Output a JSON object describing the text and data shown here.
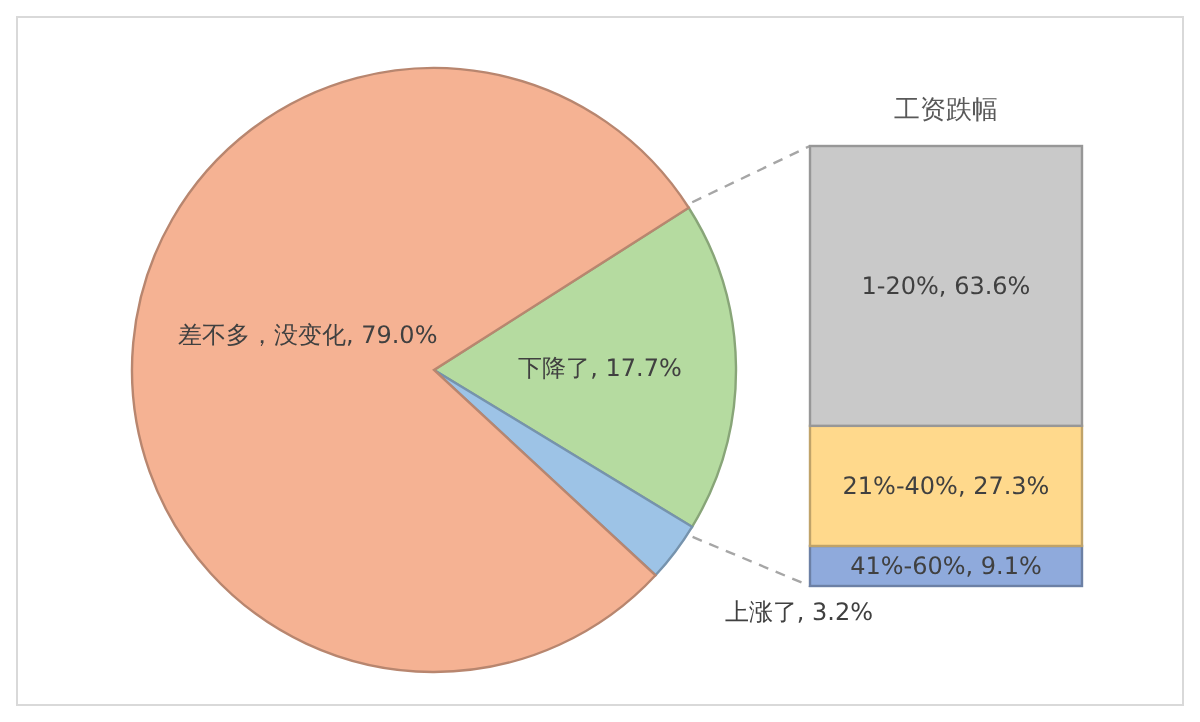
{
  "chart_data": [
    {
      "type": "pie",
      "categories": [
        "下降了",
        "上涨了",
        "差不多，没变化"
      ],
      "values": [
        17.7,
        3.2,
        79.0
      ],
      "value_labels": [
        "17.7%",
        "3.2%",
        "79.0%"
      ],
      "colors": [
        "#b5dba0",
        "#9dc3e6",
        "#f5b293"
      ]
    },
    {
      "type": "bar",
      "title": "工资跌幅",
      "stacked": true,
      "categories": [
        null
      ],
      "series": [
        {
          "color": "#8faadc",
          "values": [
            9.1
          ],
          "value_labels": [
            "41%-60%, 9.1%"
          ]
        },
        {
          "color": "#ffd98c",
          "values": [
            27.3
          ],
          "value_labels": [
            "21%-40%, 27.3%"
          ]
        },
        {
          "color": "#c9c9c9",
          "values": [
            63.6
          ],
          "value_labels": [
            "1-20%, 63.6%"
          ]
        }
      ]
    }
  ]
}
